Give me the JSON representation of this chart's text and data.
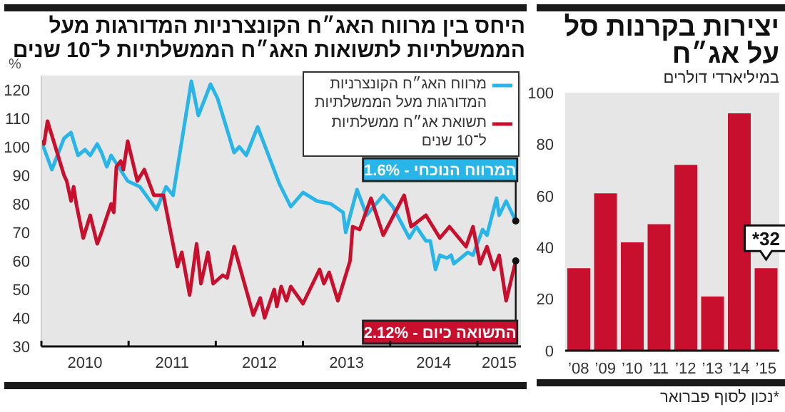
{
  "chart_data": [
    {
      "type": "bar",
      "title": "יצירות בקרנות סל על אג״ח",
      "subtitle": "במיליארדי דולרים",
      "categories": [
        "’08",
        "’09",
        "’10",
        "’11",
        "’12",
        "’13",
        "’14",
        "’15"
      ],
      "values": [
        32,
        61,
        42,
        49,
        72,
        21,
        92,
        32
      ],
      "color": "#c8102e",
      "ylim": [
        0,
        100
      ],
      "yticks": [
        0,
        20,
        40,
        60,
        80,
        100
      ],
      "value_labels": [
        null,
        null,
        null,
        null,
        null,
        null,
        null,
        "32*"
      ],
      "annotations": [
        "*נכון לסוף פברואר"
      ]
    },
    {
      "type": "line",
      "title": "היחס בין מרווח האג״ח הקונצרניות המדורגות מעל הממשלתיות לתשואות האג״ח הממשלתיות ל־10 שנים",
      "ylabel": "%",
      "legend": "top right",
      "xlim": [
        2010,
        2015.5
      ],
      "ylim": [
        30,
        125
      ],
      "yticks": [
        30,
        40,
        50,
        60,
        70,
        80,
        90,
        100,
        110,
        120
      ],
      "xticks": [
        {
          "value": 2010,
          "label": null
        },
        {
          "value": 2010.5,
          "label": "2010"
        },
        {
          "value": 2011,
          "label": null
        },
        {
          "value": 2011.5,
          "label": "2011"
        },
        {
          "value": 2012,
          "label": null
        },
        {
          "value": 2012.5,
          "label": "2012"
        },
        {
          "value": 2013,
          "label": null
        },
        {
          "value": 2013.5,
          "label": "2013"
        },
        {
          "value": 2014,
          "label": null
        },
        {
          "value": 2014.5,
          "label": "2014"
        },
        {
          "value": 2015,
          "label": null
        },
        {
          "value": 2015.25,
          "label": "2015"
        }
      ],
      "series": [
        {
          "name": "מרווח האג״ח הקונצרניות המדורגות מעל הממשלתיות",
          "color": "#29b5e8",
          "x": [
            2010.0,
            2010.12,
            2010.26,
            2010.34,
            2010.42,
            2010.5,
            2010.56,
            2010.64,
            2010.69,
            2010.75,
            2010.8,
            2010.99,
            2011.13,
            2011.32,
            2011.43,
            2011.51,
            2011.72,
            2011.8,
            2011.89,
            2011.94,
            2012.02,
            2012.21,
            2012.27,
            2012.35,
            2012.48,
            2012.73,
            2012.86,
            2013.0,
            2013.16,
            2013.32,
            2013.46,
            2013.49,
            2013.62,
            2013.73,
            2013.81,
            2013.92,
            2014.03,
            2014.22,
            2014.3,
            2014.41,
            2014.46,
            2014.52,
            2014.57,
            2014.65,
            2014.7,
            2014.73,
            2014.89,
            2014.95,
            2015.06,
            2015.11,
            2015.22,
            2015.25,
            2015.33,
            2015.44
          ],
          "values": [
            102,
            92,
            103,
            105,
            97,
            99,
            97,
            101,
            98,
            93,
            97,
            88,
            86,
            78,
            86,
            83,
            123,
            111,
            118,
            122,
            117,
            98,
            100,
            97,
            107,
            87,
            79,
            84,
            81,
            80,
            77,
            70,
            85,
            76,
            79,
            83,
            79,
            68,
            72,
            67,
            67,
            57,
            62,
            61,
            62,
            59,
            63,
            62,
            71,
            69,
            82,
            76,
            81,
            74
          ]
        },
        {
          "name": "תשואת אג״ח ממשלתיות ל־10 שנים",
          "color": "#c8102e",
          "x": [
            2010.0,
            2010.03,
            2010.07,
            2010.12,
            2010.18,
            2010.26,
            2010.29,
            2010.34,
            2010.37,
            2010.4,
            2010.48,
            2010.56,
            2010.64,
            2010.69,
            2010.8,
            2010.83,
            2010.86,
            2010.91,
            2010.94,
            2010.99,
            2011.1,
            2011.18,
            2011.29,
            2011.4,
            2011.56,
            2011.61,
            2011.7,
            2011.78,
            2011.83,
            2011.91,
            2011.97,
            2012.08,
            2012.13,
            2012.21,
            2012.43,
            2012.51,
            2012.56,
            2012.67,
            2012.7,
            2012.75,
            2012.81,
            2012.86,
            2013.0,
            2013.19,
            2013.24,
            2013.3,
            2013.4,
            2013.54,
            2013.57,
            2013.65,
            2013.78,
            2013.92,
            2014.16,
            2014.24,
            2014.41,
            2014.57,
            2014.68,
            2014.87,
            2014.95,
            2015.03,
            2015.11,
            2015.19,
            2015.25,
            2015.33,
            2015.44
          ],
          "values": [
            102,
            101,
            109,
            104,
            98,
            90,
            88,
            81,
            86,
            80,
            68,
            76,
            66,
            70,
            80,
            77,
            93,
            95,
            92,
            102,
            88,
            92,
            83,
            83,
            58,
            63,
            48,
            66,
            52,
            63,
            52,
            55,
            54,
            65,
            41,
            47,
            40,
            50,
            44,
            51,
            46,
            51,
            45,
            57,
            52,
            56,
            46,
            60,
            72,
            71,
            82,
            69,
            83,
            72,
            76,
            68,
            72,
            65,
            72,
            59,
            65,
            57,
            62,
            46,
            60
          ]
        }
      ],
      "annotations": [
        {
          "text": "המרווח הנוכחי - 1.6%",
          "x": 2015.44,
          "y": 74
        },
        {
          "text": "התשואה כיום - 2.12%",
          "x": 2015.44,
          "y": 60
        }
      ]
    }
  ]
}
